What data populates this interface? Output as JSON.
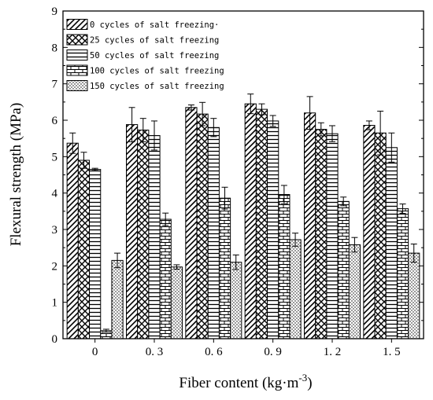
{
  "chart_data": {
    "type": "bar",
    "title": "",
    "xlabel": "Fiber content (kg·m",
    "xlabel_sup": "-3",
    "xlabel_close": ")",
    "ylabel": "Flexural strength (MPa)",
    "ylim": [
      0,
      9
    ],
    "yticks": [
      "0",
      "1",
      "2",
      "3",
      "4",
      "5",
      "6",
      "7",
      "8",
      "9"
    ],
    "categories": [
      "0",
      "0. 3",
      "0. 6",
      "0. 9",
      "1. 2",
      "1. 5"
    ],
    "legend_position": "top-left",
    "grid": false,
    "series": [
      {
        "name": "0 cycles of salt freezing·",
        "pattern": "diagonal",
        "values": [
          5.37,
          5.88,
          6.35,
          6.45,
          6.2,
          5.86
        ],
        "errors": [
          0.28,
          0.47,
          0.07,
          0.27,
          0.45,
          0.12
        ]
      },
      {
        "name": "25 cycles of salt freezing",
        "pattern": "crosshatch",
        "values": [
          4.9,
          5.73,
          6.17,
          6.3,
          5.75,
          5.65
        ],
        "errors": [
          0.22,
          0.32,
          0.32,
          0.15,
          0.18,
          0.6
        ]
      },
      {
        "name": "50 cycles of salt freezing",
        "pattern": "horizontal",
        "values": [
          4.65,
          5.58,
          5.8,
          5.98,
          5.63,
          5.25
        ],
        "errors": [
          0.03,
          0.4,
          0.25,
          0.15,
          0.22,
          0.4
        ]
      },
      {
        "name": "100 cycles of salt freezing",
        "pattern": "brick",
        "values": [
          0.22,
          3.28,
          3.86,
          3.96,
          3.77,
          3.57
        ],
        "errors": [
          0.04,
          0.17,
          0.3,
          0.25,
          0.12,
          0.13
        ]
      },
      {
        "name": "150 cycles of salt freezing",
        "pattern": "dots",
        "values": [
          2.15,
          1.97,
          2.1,
          2.72,
          2.58,
          2.35
        ],
        "errors": [
          0.2,
          0.06,
          0.2,
          0.18,
          0.2,
          0.25
        ]
      }
    ]
  }
}
